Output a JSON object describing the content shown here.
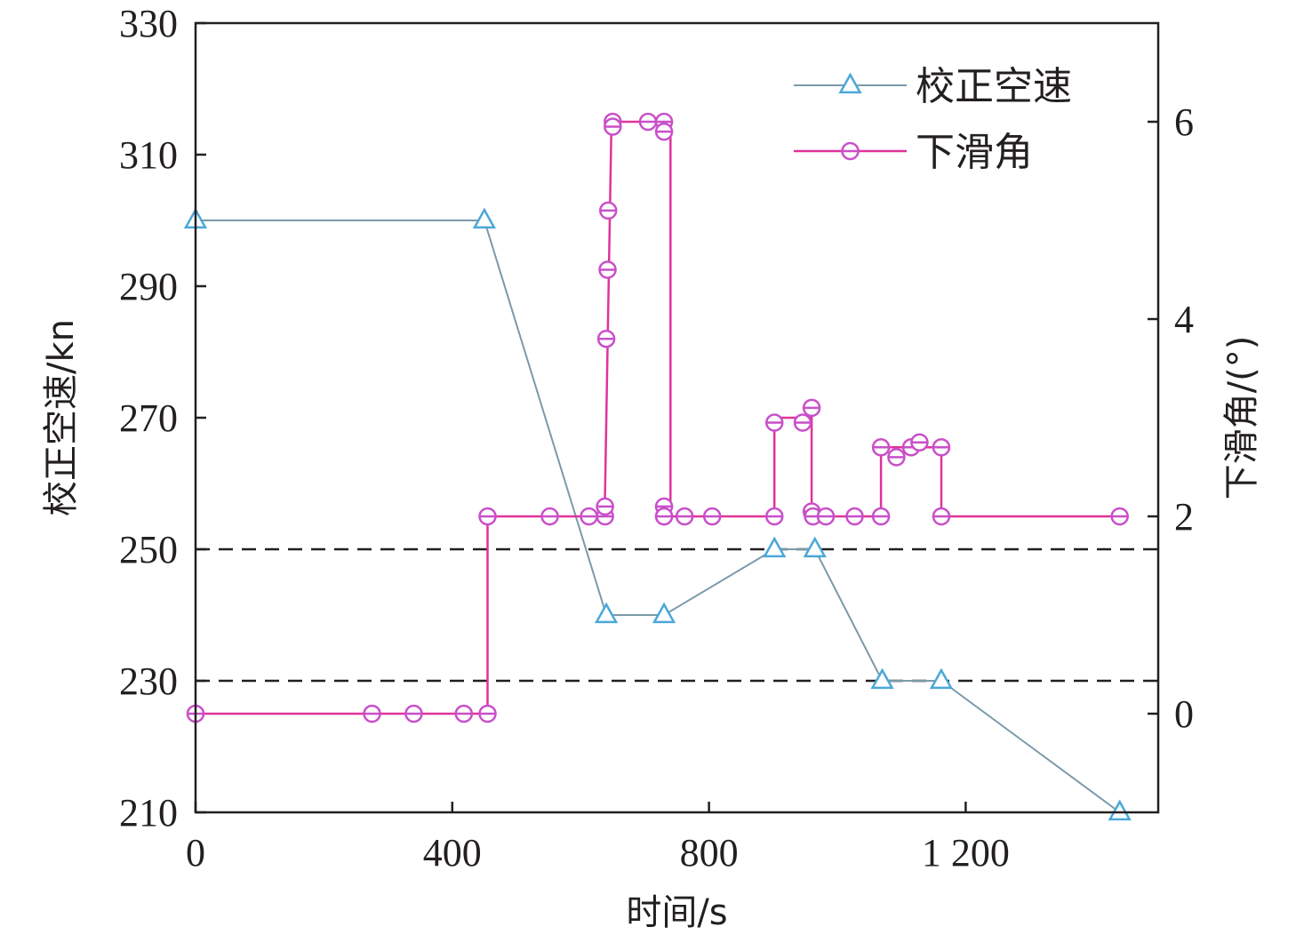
{
  "chart_data": {
    "type": "line",
    "xlabel": "时间/s",
    "ylabel": "校正空速/kn",
    "y2label": "下滑角/(°)",
    "xlim": [
      0,
      1500
    ],
    "ylim": [
      210,
      330
    ],
    "y2lim": [
      -1,
      7
    ],
    "x_ticks": [
      {
        "value": 0,
        "label": "0"
      },
      {
        "value": 400,
        "label": "400"
      },
      {
        "value": 800,
        "label": "800"
      },
      {
        "value": 1200,
        "label": "1 200"
      }
    ],
    "y_ticks": [
      {
        "value": 210,
        "label": "210"
      },
      {
        "value": 230,
        "label": "230"
      },
      {
        "value": 250,
        "label": "250"
      },
      {
        "value": 270,
        "label": "270"
      },
      {
        "value": 290,
        "label": "290"
      },
      {
        "value": 310,
        "label": "310"
      },
      {
        "value": 330,
        "label": "330"
      }
    ],
    "y2_ticks": [
      {
        "value": 0,
        "label": "0"
      },
      {
        "value": 2,
        "label": "2"
      },
      {
        "value": 4,
        "label": "4"
      },
      {
        "value": 6,
        "label": "6"
      }
    ],
    "reference_lines": [
      250,
      230
    ],
    "legend_position": "top-right",
    "series": [
      {
        "name": "校正空速",
        "axis": "left",
        "color": "#4aa8d8",
        "marker": "triangle",
        "style": "linear",
        "x": [
          0,
          450,
          640,
          730,
          902,
          965,
          1070,
          1162,
          1440
        ],
        "y": [
          300,
          300,
          240,
          240,
          250,
          250,
          230,
          230,
          210
        ]
      },
      {
        "name": "下滑角",
        "axis": "right",
        "color": "#e0339a",
        "marker": "circle",
        "style": "step",
        "step_x": [
          0,
          455,
          455,
          638,
          638,
          648,
          648,
          740,
          740,
          902,
          902,
          960,
          960,
          1068,
          1068,
          1162,
          1162,
          1440
        ],
        "step_y": [
          0,
          0,
          2,
          2,
          2.2,
          6,
          6,
          6,
          2,
          2,
          3,
          3,
          2,
          2,
          2.7,
          2.7,
          2,
          2
        ],
        "marker_x": [
          0,
          275,
          340,
          418,
          455,
          455,
          552,
          613,
          638,
          638,
          640,
          642,
          643,
          650,
          650,
          705,
          730,
          730,
          730,
          730,
          730,
          762,
          805,
          902,
          902,
          946,
          960,
          960,
          962,
          982,
          1027,
          1068,
          1068,
          1092,
          1115,
          1128,
          1162,
          1162,
          1440
        ],
        "marker_y": [
          0,
          0,
          0,
          0,
          0,
          2,
          2,
          2,
          2,
          2.1,
          3.8,
          4.5,
          5.1,
          6,
          5.95,
          6,
          6,
          5.9,
          2.1,
          2,
          2,
          2,
          2,
          2,
          2.95,
          2.95,
          3.1,
          2.05,
          2,
          2,
          2,
          2,
          2.7,
          2.6,
          2.7,
          2.75,
          2.7,
          2,
          2
        ]
      }
    ]
  }
}
